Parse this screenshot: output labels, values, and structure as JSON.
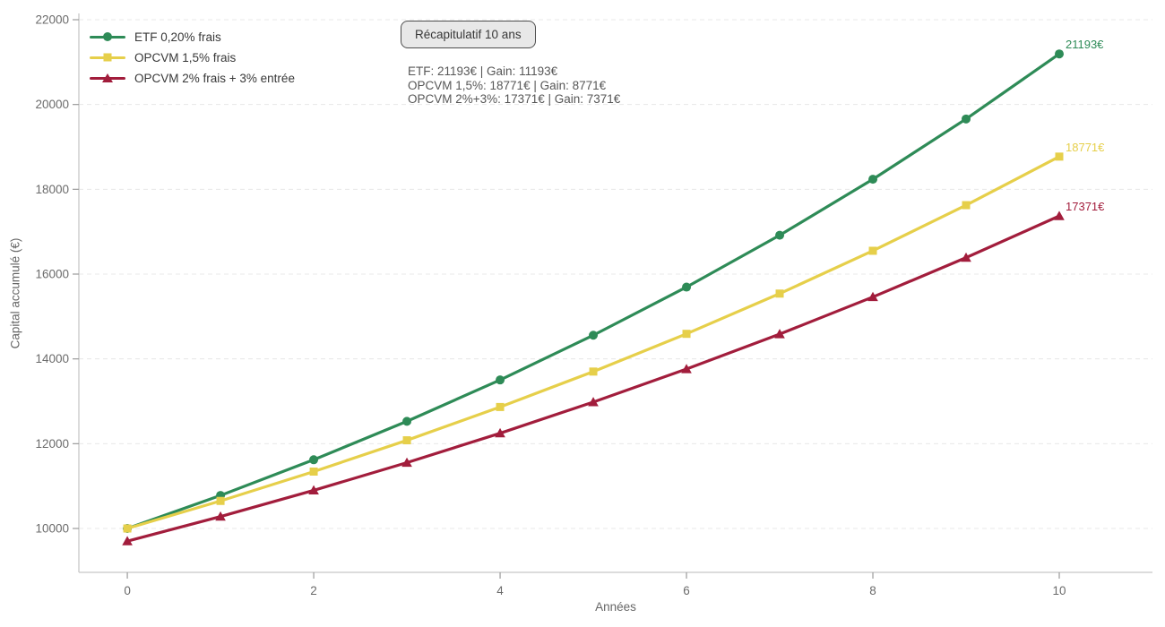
{
  "annotation": {
    "title": "Récapitulatif 10 ans",
    "stats": [
      "ETF: 21193€ | Gain: 11193€",
      "OPCVM 1,5%: 18771€ | Gain: 8771€",
      "OPCVM 2%+3%: 17371€ | Gain: 7371€"
    ]
  },
  "chart_data": {
    "type": "line",
    "title": "",
    "xlabel": "Années",
    "ylabel": "Capital accumulé (€)",
    "x": [
      0,
      1,
      2,
      3,
      4,
      5,
      6,
      7,
      8,
      9,
      10
    ],
    "xticks": [
      0,
      2,
      4,
      6,
      8,
      10
    ],
    "yticks": [
      10000,
      12000,
      14000,
      16000,
      18000,
      20000,
      22000
    ],
    "xlim": [
      -0.52,
      11.0
    ],
    "ylim": [
      8965,
      22148
    ],
    "grid": true,
    "grid_color": "#e8e8e8",
    "axis_color": "#c8c8c8",
    "tick_text_color": "#6b6b6b",
    "legend_position": "upper-left",
    "series": [
      {
        "name": "ETF 0,20% frais",
        "color": "#2e8b57",
        "marker": "circle",
        "end_label": "21193€",
        "values": [
          10000,
          10780,
          11621,
          12527,
          13504,
          14558,
          15693,
          16917,
          18237,
          19659,
          21193
        ]
      },
      {
        "name": "OPCVM 1,5% frais",
        "color": "#e6cf4a",
        "marker": "square",
        "end_label": "18771€",
        "values": [
          10000,
          10650,
          11342,
          12080,
          12865,
          13701,
          14591,
          15540,
          16550,
          17626,
          18771
        ]
      },
      {
        "name": "OPCVM 2% frais + 3% entrée",
        "color": "#a21d3c",
        "marker": "triangle",
        "end_label": "17371€",
        "values": [
          9700,
          10282,
          10899,
          11553,
          12246,
          12981,
          13760,
          14585,
          15460,
          16388,
          17371
        ]
      }
    ]
  }
}
